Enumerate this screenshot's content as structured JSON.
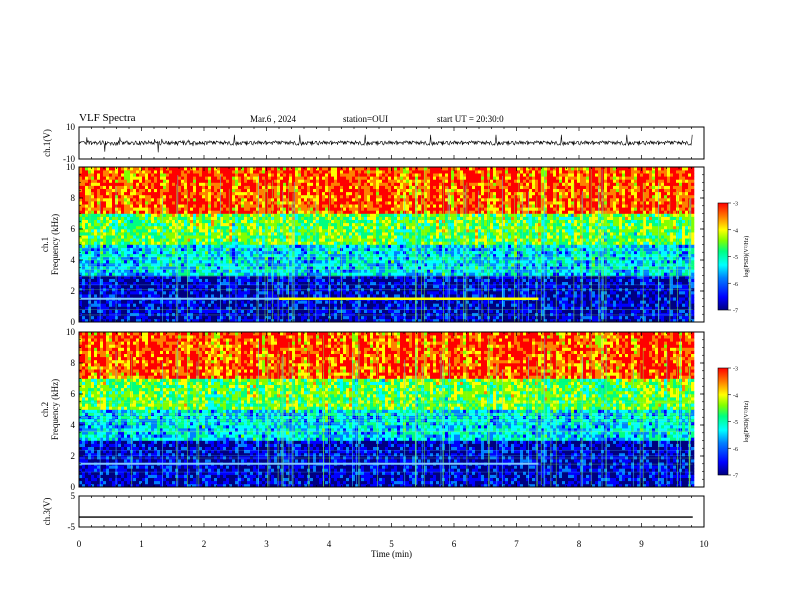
{
  "header": {
    "title": "VLF Spectra",
    "date": "Mar.6 , 2024",
    "station": "station=OUI",
    "start": "start UT = 20:30:0"
  },
  "chart_data": [
    {
      "type": "line",
      "ylabel": "ch.1(V)",
      "ylim": [
        -10,
        10
      ],
      "yticks": [
        "10",
        "-10"
      ],
      "series": [
        {
          "approx_mean": 0,
          "approx_amplitude": 2
        }
      ]
    },
    {
      "type": "heatmap",
      "ylabel_line1": "ch.1",
      "ylabel_line2": "Frequency (kHz)",
      "ylim": [
        0,
        10
      ],
      "yticks": [
        "0",
        "2",
        "4",
        "6",
        "8",
        "10"
      ],
      "colorbar": {
        "label": "log(PSD)(V²/Hz)",
        "ticks": [
          "-3",
          "-4",
          "-5",
          "-6",
          "-7"
        ],
        "range": [
          -7,
          -3
        ]
      },
      "bands_khz": [
        {
          "from": 0,
          "to": 3,
          "level": -6.6
        },
        {
          "from": 3,
          "to": 5,
          "level": -5.6
        },
        {
          "from": 5,
          "to": 7,
          "level": -4.8
        },
        {
          "from": 7,
          "to": 10,
          "level": -3.6
        }
      ],
      "tone_line": {
        "freq_khz": 1.5,
        "t_start_min": 0,
        "t_end_min": 7.35,
        "bright_from_min": 3.2
      }
    },
    {
      "type": "heatmap",
      "ylabel_line1": "ch.2",
      "ylabel_line2": "Frequency (kHz)",
      "ylim": [
        0,
        10
      ],
      "yticks": [
        "0",
        "2",
        "4",
        "6",
        "8",
        "10"
      ],
      "colorbar": {
        "label": "log(PSD)(V²/Hz)",
        "ticks": [
          "-3",
          "-4",
          "-5",
          "-6",
          "-7"
        ],
        "range": [
          -7,
          -3
        ]
      },
      "bands_khz": [
        {
          "from": 0,
          "to": 3,
          "level": -6.6
        },
        {
          "from": 3,
          "to": 5,
          "level": -5.6
        },
        {
          "from": 5,
          "to": 7,
          "level": -4.8
        },
        {
          "from": 7,
          "to": 10,
          "level": -3.6
        }
      ],
      "tone_line": {
        "freq_khz": 1.5,
        "t_start_min": 0,
        "t_end_min": 7.35,
        "bright_from_min": null
      }
    },
    {
      "type": "line",
      "ylabel": "ch.3(V)",
      "ylim": [
        -5,
        5
      ],
      "yticks": [
        "5",
        "-5"
      ],
      "series": [
        {
          "approx_value": -1.8
        }
      ]
    }
  ],
  "xaxis": {
    "label": "Time (min)",
    "ticks": [
      "0",
      "1",
      "2",
      "3",
      "4",
      "5",
      "6",
      "7",
      "8",
      "9",
      "10"
    ],
    "range": [
      0,
      10
    ],
    "data_end_min": 9.82
  },
  "colors": {
    "palette": [
      "#000080",
      "#0000ff",
      "#0080ff",
      "#00ffff",
      "#00ff80",
      "#80ff00",
      "#ffff00",
      "#ff8000",
      "#ff0000"
    ],
    "tone_bright": "#ffff00",
    "tone_dim": "#80c8ff"
  }
}
